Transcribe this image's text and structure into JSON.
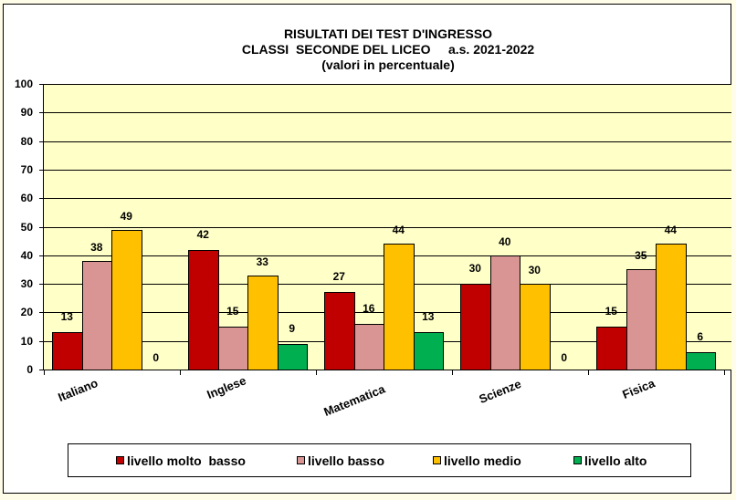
{
  "chart_data": {
    "type": "bar",
    "title": "RISULTATI DEI TEST D'INGRESSO",
    "subtitle": "CLASSI  SECONDE DEL LICEO     a.s. 2021-2022",
    "subtitle2": "(valori in percentuale)",
    "xlabel": "",
    "ylabel": "",
    "ylim": [
      0,
      100
    ],
    "yticks": [
      0,
      10,
      20,
      30,
      40,
      50,
      60,
      70,
      80,
      90,
      100
    ],
    "grid": true,
    "legend_position": "bottom",
    "categories": [
      "Italiano",
      "Inglese",
      "Matematica",
      "Scienze",
      "Fisica"
    ],
    "series": [
      {
        "name": "livello molto  basso",
        "color": "#c00000",
        "values": [
          13,
          42,
          27,
          30,
          15
        ]
      },
      {
        "name": "livello basso",
        "color": "#d99594",
        "values": [
          38,
          15,
          16,
          40,
          35
        ]
      },
      {
        "name": "livello medio",
        "color": "#ffc000",
        "values": [
          49,
          33,
          44,
          30,
          44
        ]
      },
      {
        "name": "livello alto",
        "color": "#00b050",
        "values": [
          0,
          9,
          13,
          0,
          6
        ]
      }
    ],
    "plot_background": "#ffffc8"
  }
}
